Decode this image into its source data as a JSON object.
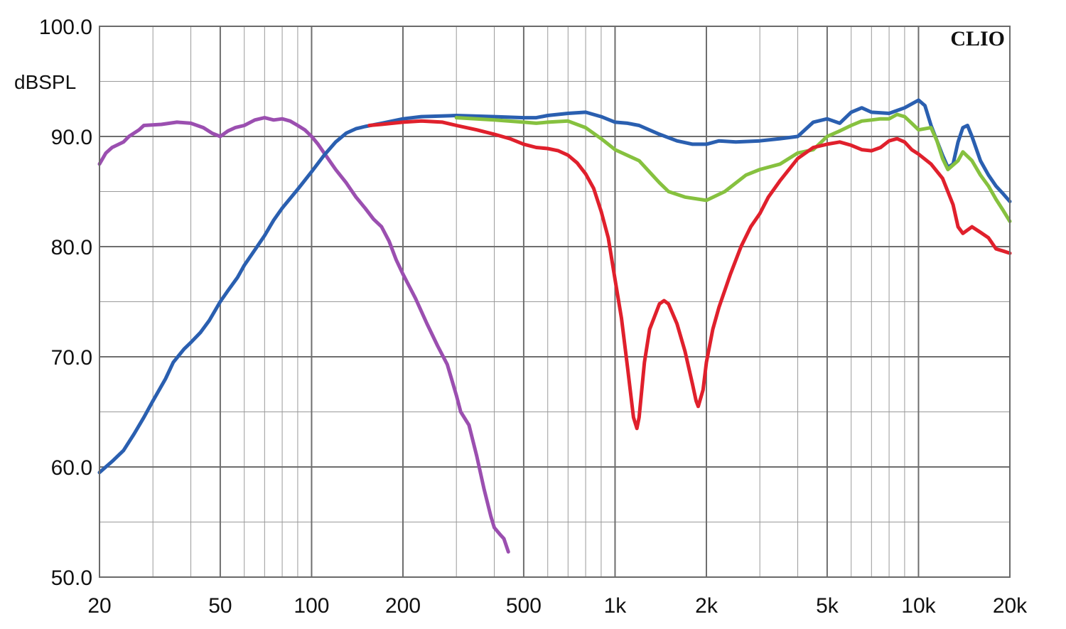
{
  "chart_data": {
    "type": "line",
    "brand": "CLIO",
    "ylabel": "dBSPL",
    "x_scale": "log",
    "xlim": [
      20,
      20000
    ],
    "ylim": [
      50,
      100
    ],
    "grid": true,
    "y_ticks": [
      {
        "value": 100,
        "label": "100.0"
      },
      {
        "value": 90,
        "label": "90.0"
      },
      {
        "value": 80,
        "label": "80.0"
      },
      {
        "value": 70,
        "label": "70.0"
      },
      {
        "value": 60,
        "label": "60.0"
      },
      {
        "value": 50,
        "label": "50.0"
      }
    ],
    "y_minor_ticks": [
      95,
      85,
      75,
      65,
      55
    ],
    "x_ticks": [
      {
        "value": 20,
        "label": "20"
      },
      {
        "value": 50,
        "label": "50"
      },
      {
        "value": 100,
        "label": "100"
      },
      {
        "value": 200,
        "label": "200"
      },
      {
        "value": 500,
        "label": "500"
      },
      {
        "value": 1000,
        "label": "1k"
      },
      {
        "value": 2000,
        "label": "2k"
      },
      {
        "value": 5000,
        "label": "5k"
      },
      {
        "value": 10000,
        "label": "10k"
      },
      {
        "value": 20000,
        "label": "20k"
      }
    ],
    "x_minor_ticks": [
      30,
      40,
      60,
      70,
      80,
      90,
      300,
      400,
      600,
      700,
      800,
      900,
      3000,
      4000,
      6000,
      7000,
      8000,
      9000
    ],
    "series": [
      {
        "color": "#9b4fb0",
        "points": [
          [
            20,
            87.5
          ],
          [
            21,
            88.5
          ],
          [
            22,
            89.0
          ],
          [
            24,
            89.5
          ],
          [
            25,
            90.0
          ],
          [
            27,
            90.6
          ],
          [
            28,
            91.0
          ],
          [
            32,
            91.1
          ],
          [
            36,
            91.3
          ],
          [
            40,
            91.2
          ],
          [
            44,
            90.8
          ],
          [
            47,
            90.3
          ],
          [
            50,
            90.0
          ],
          [
            53,
            90.5
          ],
          [
            56,
            90.8
          ],
          [
            60,
            91.0
          ],
          [
            65,
            91.5
          ],
          [
            70,
            91.7
          ],
          [
            75,
            91.5
          ],
          [
            80,
            91.6
          ],
          [
            85,
            91.4
          ],
          [
            90,
            91.0
          ],
          [
            95,
            90.6
          ],
          [
            100,
            90.0
          ],
          [
            105,
            89.3
          ],
          [
            110,
            88.5
          ],
          [
            120,
            87.0
          ],
          [
            130,
            85.8
          ],
          [
            140,
            84.5
          ],
          [
            150,
            83.5
          ],
          [
            160,
            82.5
          ],
          [
            170,
            81.8
          ],
          [
            180,
            80.5
          ],
          [
            190,
            78.8
          ],
          [
            200,
            77.5
          ],
          [
            220,
            75.3
          ],
          [
            240,
            73.0
          ],
          [
            260,
            71.0
          ],
          [
            280,
            69.3
          ],
          [
            300,
            66.5
          ],
          [
            310,
            65.0
          ],
          [
            330,
            63.8
          ],
          [
            350,
            61.0
          ],
          [
            370,
            58.0
          ],
          [
            390,
            55.5
          ],
          [
            400,
            54.5
          ],
          [
            420,
            53.8
          ],
          [
            430,
            53.5
          ],
          [
            445,
            52.3
          ]
        ]
      },
      {
        "color": "#2a5fb0",
        "points": [
          [
            20,
            59.5
          ],
          [
            22,
            60.5
          ],
          [
            24,
            61.5
          ],
          [
            26,
            63.0
          ],
          [
            28,
            64.5
          ],
          [
            30,
            66.0
          ],
          [
            33,
            68.0
          ],
          [
            35,
            69.5
          ],
          [
            38,
            70.7
          ],
          [
            40,
            71.3
          ],
          [
            43,
            72.2
          ],
          [
            46,
            73.3
          ],
          [
            50,
            75.0
          ],
          [
            53,
            76.0
          ],
          [
            57,
            77.2
          ],
          [
            60,
            78.3
          ],
          [
            65,
            79.7
          ],
          [
            70,
            81.0
          ],
          [
            75,
            82.4
          ],
          [
            80,
            83.5
          ],
          [
            90,
            85.2
          ],
          [
            100,
            86.8
          ],
          [
            110,
            88.3
          ],
          [
            120,
            89.5
          ],
          [
            130,
            90.3
          ],
          [
            140,
            90.7
          ],
          [
            150,
            90.9
          ],
          [
            170,
            91.2
          ],
          [
            200,
            91.6
          ],
          [
            230,
            91.8
          ],
          [
            300,
            91.9
          ],
          [
            400,
            91.8
          ],
          [
            500,
            91.7
          ],
          [
            550,
            91.7
          ],
          [
            600,
            91.9
          ],
          [
            700,
            92.1
          ],
          [
            800,
            92.2
          ],
          [
            900,
            91.8
          ],
          [
            1000,
            91.3
          ],
          [
            1100,
            91.2
          ],
          [
            1200,
            91.0
          ],
          [
            1400,
            90.2
          ],
          [
            1600,
            89.6
          ],
          [
            1800,
            89.3
          ],
          [
            2000,
            89.3
          ],
          [
            2200,
            89.6
          ],
          [
            2500,
            89.5
          ],
          [
            3000,
            89.6
          ],
          [
            3500,
            89.8
          ],
          [
            4000,
            90.0
          ],
          [
            4500,
            91.3
          ],
          [
            5000,
            91.6
          ],
          [
            5500,
            91.2
          ],
          [
            6000,
            92.2
          ],
          [
            6500,
            92.6
          ],
          [
            7000,
            92.2
          ],
          [
            8000,
            92.1
          ],
          [
            9000,
            92.6
          ],
          [
            10000,
            93.3
          ],
          [
            10500,
            92.8
          ],
          [
            11000,
            91.0
          ],
          [
            12000,
            88.3
          ],
          [
            12500,
            87.2
          ],
          [
            13000,
            87.5
          ],
          [
            13500,
            89.5
          ],
          [
            14000,
            90.8
          ],
          [
            14500,
            91.0
          ],
          [
            15000,
            90.0
          ],
          [
            16000,
            87.8
          ],
          [
            17000,
            86.5
          ],
          [
            18000,
            85.5
          ],
          [
            19000,
            84.8
          ],
          [
            20000,
            84.1
          ]
        ]
      },
      {
        "color": "#86c13f",
        "points": [
          [
            300,
            91.7
          ],
          [
            400,
            91.5
          ],
          [
            500,
            91.3
          ],
          [
            550,
            91.2
          ],
          [
            600,
            91.3
          ],
          [
            700,
            91.4
          ],
          [
            800,
            90.8
          ],
          [
            900,
            89.8
          ],
          [
            1000,
            88.8
          ],
          [
            1200,
            87.8
          ],
          [
            1400,
            85.8
          ],
          [
            1500,
            85.0
          ],
          [
            1700,
            84.5
          ],
          [
            2000,
            84.2
          ],
          [
            2300,
            85.0
          ],
          [
            2700,
            86.5
          ],
          [
            3000,
            87.0
          ],
          [
            3500,
            87.5
          ],
          [
            4000,
            88.5
          ],
          [
            4500,
            88.8
          ],
          [
            5000,
            90.0
          ],
          [
            5500,
            90.5
          ],
          [
            6000,
            91.0
          ],
          [
            6500,
            91.4
          ],
          [
            7000,
            91.5
          ],
          [
            7500,
            91.6
          ],
          [
            8000,
            91.6
          ],
          [
            8500,
            92.0
          ],
          [
            9000,
            91.8
          ],
          [
            9500,
            91.2
          ],
          [
            10000,
            90.6
          ],
          [
            11000,
            90.8
          ],
          [
            11500,
            89.6
          ],
          [
            12000,
            88.0
          ],
          [
            12500,
            87.0
          ],
          [
            13500,
            87.8
          ],
          [
            14000,
            88.6
          ],
          [
            15000,
            87.8
          ],
          [
            16000,
            86.5
          ],
          [
            17000,
            85.5
          ],
          [
            18000,
            84.3
          ],
          [
            19000,
            83.3
          ],
          [
            20000,
            82.3
          ]
        ]
      },
      {
        "color": "#e0202c",
        "points": [
          [
            155,
            91.0
          ],
          [
            170,
            91.1
          ],
          [
            200,
            91.3
          ],
          [
            230,
            91.4
          ],
          [
            270,
            91.3
          ],
          [
            300,
            91.0
          ],
          [
            350,
            90.6
          ],
          [
            400,
            90.2
          ],
          [
            450,
            89.8
          ],
          [
            500,
            89.3
          ],
          [
            550,
            89.0
          ],
          [
            600,
            88.9
          ],
          [
            650,
            88.7
          ],
          [
            700,
            88.3
          ],
          [
            750,
            87.6
          ],
          [
            800,
            86.6
          ],
          [
            850,
            85.3
          ],
          [
            900,
            83.2
          ],
          [
            950,
            80.8
          ],
          [
            1000,
            77.0
          ],
          [
            1050,
            73.5
          ],
          [
            1100,
            69.0
          ],
          [
            1150,
            64.5
          ],
          [
            1180,
            63.5
          ],
          [
            1200,
            64.5
          ],
          [
            1250,
            69.5
          ],
          [
            1300,
            72.5
          ],
          [
            1400,
            74.8
          ],
          [
            1450,
            75.1
          ],
          [
            1500,
            74.8
          ],
          [
            1600,
            73.0
          ],
          [
            1700,
            70.5
          ],
          [
            1800,
            67.5
          ],
          [
            1850,
            66.0
          ],
          [
            1880,
            65.5
          ],
          [
            1950,
            67.0
          ],
          [
            2000,
            69.5
          ],
          [
            2100,
            72.5
          ],
          [
            2200,
            74.5
          ],
          [
            2400,
            77.5
          ],
          [
            2600,
            80.0
          ],
          [
            2800,
            81.8
          ],
          [
            3000,
            83.0
          ],
          [
            3200,
            84.5
          ],
          [
            3500,
            86.0
          ],
          [
            4000,
            88.0
          ],
          [
            4500,
            89.0
          ],
          [
            5000,
            89.3
          ],
          [
            5500,
            89.5
          ],
          [
            6000,
            89.2
          ],
          [
            6500,
            88.8
          ],
          [
            7000,
            88.7
          ],
          [
            7500,
            89.0
          ],
          [
            8000,
            89.6
          ],
          [
            8500,
            89.8
          ],
          [
            9000,
            89.5
          ],
          [
            9500,
            88.8
          ],
          [
            10000,
            88.4
          ],
          [
            11000,
            87.5
          ],
          [
            12000,
            86.2
          ],
          [
            13000,
            83.8
          ],
          [
            13500,
            81.8
          ],
          [
            14000,
            81.2
          ],
          [
            15000,
            81.8
          ],
          [
            16000,
            81.3
          ],
          [
            17000,
            80.8
          ],
          [
            18000,
            79.8
          ],
          [
            19000,
            79.6
          ],
          [
            20000,
            79.4
          ]
        ]
      }
    ]
  }
}
